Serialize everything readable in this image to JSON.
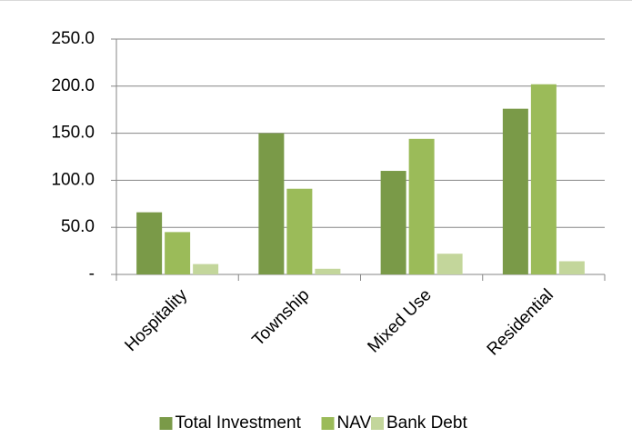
{
  "chart_data": {
    "type": "bar",
    "categories": [
      "Hospitality",
      "Township",
      "Mixed Use",
      "Residential"
    ],
    "series": [
      {
        "name": "Total Investment",
        "color": "#7a9a48",
        "values": [
          66,
          150,
          110,
          176
        ]
      },
      {
        "name": "NAV",
        "color": "#9bbb59",
        "values": [
          45,
          91,
          144,
          202
        ]
      },
      {
        "name": "Bank Debt",
        "color": "#c3d69b",
        "values": [
          11,
          6,
          22,
          14
        ]
      }
    ],
    "ylim": [
      0,
      250
    ],
    "yticks": [
      {
        "value": 0,
        "label": "-"
      },
      {
        "value": 50,
        "label": "50.0"
      },
      {
        "value": 100,
        "label": "100.0"
      },
      {
        "value": 150,
        "label": "150.0"
      },
      {
        "value": 200,
        "label": "200.0"
      },
      {
        "value": 250,
        "label": "250.0"
      }
    ],
    "grid": true,
    "legend": "bottom"
  }
}
